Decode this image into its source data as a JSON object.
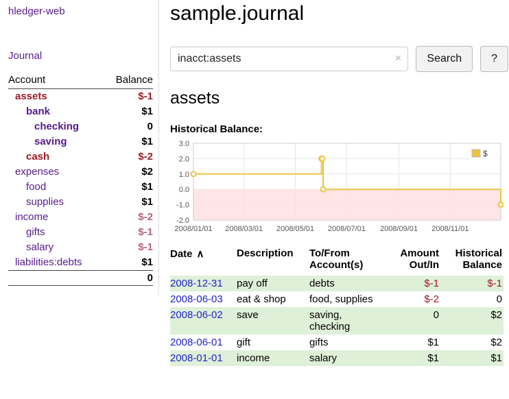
{
  "icons": {
    "clear_search": "×",
    "sort_ascending": "∧"
  },
  "colors": {
    "link_purple": "#551A8B",
    "date_link_blue": "#2222CC",
    "negative": "#9E1B28",
    "negative_soft": "#B2637A",
    "row_highlight_green": "#DFF0D8",
    "chart_series_yellow": "#EDC240",
    "chart_negative_zone_pink": "#FFDFDF"
  },
  "sidebar": {
    "app_title": "hledger-web",
    "journal_label": "Journal",
    "accounts": {
      "col_account": "Account",
      "col_balance": "Balance",
      "rows": [
        {
          "name": "assets",
          "balance": "$-1",
          "indent": 1,
          "bold": true,
          "name_color": "negative",
          "balance_color": "negative"
        },
        {
          "name": "bank",
          "balance": "$1",
          "indent": 2,
          "bold": true
        },
        {
          "name": "checking",
          "balance": "0",
          "indent": 3,
          "bold": true
        },
        {
          "name": "saving",
          "balance": "$1",
          "indent": 3,
          "bold": true
        },
        {
          "name": "cash",
          "balance": "$-2",
          "indent": 2,
          "bold": true,
          "name_color": "negative",
          "balance_color": "negative"
        },
        {
          "name": "expenses",
          "balance": "$2",
          "indent": 1
        },
        {
          "name": "food",
          "balance": "$1",
          "indent": 2
        },
        {
          "name": "supplies",
          "balance": "$1",
          "indent": 2
        },
        {
          "name": "income",
          "balance": "$-2",
          "indent": 1,
          "balance_color": "negative_soft"
        },
        {
          "name": "gifts",
          "balance": "$-1",
          "indent": 2,
          "balance_color": "negative_soft"
        },
        {
          "name": "salary",
          "balance": "$-1",
          "indent": 2,
          "balance_color": "negative_soft"
        },
        {
          "name": "liabilities:debts",
          "balance": "$1",
          "indent": 1
        }
      ],
      "total": "0"
    }
  },
  "main": {
    "title": "sample.journal",
    "search": {
      "value": "inacct:assets",
      "button_label": "Search",
      "help_label": "?"
    },
    "section_heading": "assets",
    "chart_label": "Historical Balance:"
  },
  "chart_data": {
    "type": "line",
    "step": true,
    "title": "Historical Balance",
    "legend": [
      {
        "label": "$",
        "color": "#EDC240"
      }
    ],
    "legend_position": "top-right",
    "grid": true,
    "ylim": [
      -2,
      3
    ],
    "yticks": [
      "3.0",
      "2.0",
      "1.0",
      "0.0",
      "-1.0",
      "-2.0"
    ],
    "ytick_values": [
      3,
      2,
      1,
      0,
      -1,
      -2
    ],
    "xrange": [
      "2008-01-01",
      "2008-12-31"
    ],
    "xticks": [
      {
        "label": "2008/01/01",
        "date": "2008-01-01"
      },
      {
        "label": "2008/03/01",
        "date": "2008-03-01"
      },
      {
        "label": "2008/05/01",
        "date": "2008-05-01"
      },
      {
        "label": "2008/07/01",
        "date": "2008-07-01"
      },
      {
        "label": "2008/09/01",
        "date": "2008-09-01"
      },
      {
        "label": "2008/11/01",
        "date": "2008-11-01"
      }
    ],
    "series": [
      {
        "name": "$",
        "color": "#EDC240",
        "points": [
          {
            "date": "2008-01-01",
            "y": 1
          },
          {
            "date": "2008-06-01",
            "y": 2
          },
          {
            "date": "2008-06-02",
            "y": 2
          },
          {
            "date": "2008-06-03",
            "y": 0
          },
          {
            "date": "2008-12-31",
            "y": -1
          }
        ]
      }
    ],
    "negative_zone": {
      "from": 0,
      "to": -2,
      "fill": "#FFDFDF"
    }
  },
  "transactions": {
    "headers": [
      {
        "label": "Date",
        "align": "left",
        "sorted": "ascending"
      },
      {
        "label": "Description",
        "align": "left"
      },
      {
        "label": "To/From\nAccount(s)",
        "align": "left"
      },
      {
        "label": "Amount\nOut/In",
        "align": "right"
      },
      {
        "label": "Historical\nBalance",
        "align": "right"
      }
    ],
    "rows": [
      {
        "date": "2008-12-31",
        "description": "pay off",
        "accounts": "debts",
        "amount": "$-1",
        "amount_color": "negative",
        "balance": "$-1",
        "balance_color": "negative"
      },
      {
        "date": "2008-06-03",
        "description": "eat & shop",
        "accounts": "food, supplies",
        "amount": "$-2",
        "amount_color": "negative",
        "balance": "0"
      },
      {
        "date": "2008-06-02",
        "description": "save",
        "accounts": "saving,\nchecking",
        "amount": "0",
        "balance": "$2"
      },
      {
        "date": "2008-06-01",
        "description": "gift",
        "accounts": "gifts",
        "amount": "$1",
        "balance": "$2"
      },
      {
        "date": "2008-01-01",
        "description": "income",
        "accounts": "salary",
        "amount": "$1",
        "balance": "$1"
      }
    ]
  }
}
